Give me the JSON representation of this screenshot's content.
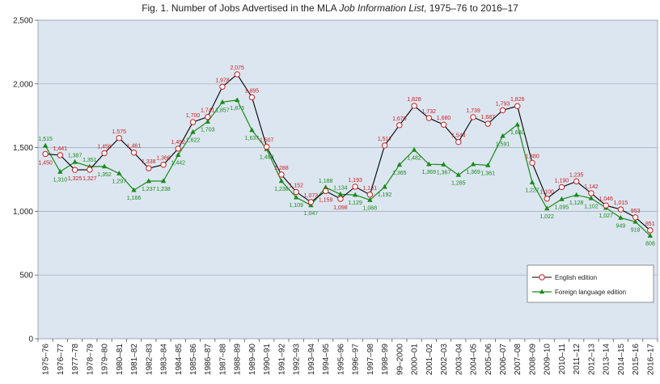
{
  "title": {
    "prefix": "Fig. 1. Number of Jobs Advertised in the MLA ",
    "italic": "Job Information List",
    "suffix": ", 1975–76 to 2016–17"
  },
  "colors": {
    "plot_bg": "#dce6f1",
    "english": "#cc1f1f",
    "english_marker_fill": "#ffffff",
    "english_line": "#000000",
    "foreign": "#1a8a1a"
  },
  "chart_data": {
    "type": "line",
    "title": "Fig. 1. Number of Jobs Advertised in the MLA Job Information List, 1975–76 to 2016–17",
    "xlabel": "",
    "ylabel": "",
    "ylim": [
      0,
      2500
    ],
    "yticks": [
      0,
      500,
      1000,
      1500,
      2000,
      2500
    ],
    "ytick_labels": [
      "0",
      "500",
      "1,000",
      "1,500",
      "2,000",
      "2,500"
    ],
    "grid": "horizontal",
    "legend_position": "bottom-right",
    "categories": [
      "1975–76",
      "1976–77",
      "1977–78",
      "1978–79",
      "1979–80",
      "1980–81",
      "1981–82",
      "1982–83",
      "1983–84",
      "1984–85",
      "1985–86",
      "1986–87",
      "1987–88",
      "1988–89",
      "1989–90",
      "1990–91",
      "1991–92",
      "1992–93",
      "1993–94",
      "1994–95",
      "1995–96",
      "1996–97",
      "1997–98",
      "1998–99",
      "99–2000",
      "2000–01",
      "2001–02",
      "2002–03",
      "2003–04",
      "2004–05",
      "2005–06",
      "2006–07",
      "2007–08",
      "2008–09",
      "2009–10",
      "2010–11",
      "2011–12",
      "2012–13",
      "2013–14",
      "2014–15",
      "2015–16",
      "2016–17"
    ],
    "series": [
      {
        "name": "English edition",
        "values": [
          1450,
          1441,
          1325,
          1327,
          1456,
          1575,
          1461,
          1338,
          1366,
          1492,
          1700,
          1741,
          1978,
          2075,
          1895,
          1507,
          1288,
          1152,
          1073,
          1159,
          1098,
          1193,
          1131,
          1517,
          1676,
          1828,
          1732,
          1680,
          1544,
          1739,
          1687,
          1793,
          1826,
          1380,
          1100,
          1190,
          1235,
          1142,
          1046,
          1015,
          953,
          851
        ],
        "labels": [
          "1,450",
          "1,441",
          "1,325",
          "1,327",
          "1,456",
          "1,575",
          "1,461",
          "1,338",
          "1,366",
          "1,492",
          "1,700",
          "1,741",
          "1,978",
          "2,075",
          "1,895",
          "1,507",
          "1,288",
          "1,152",
          "1,073",
          "1,159",
          "1,098",
          "1,193",
          "1,131",
          "1,517",
          "1,676",
          "1,828",
          "1,732",
          "1,680",
          "1,544",
          "1,739",
          "1,687",
          "1,793",
          "1,826",
          "1,380",
          "1,100",
          "1,190",
          "1,235",
          "1,142",
          "1,046",
          "1,015",
          "953",
          "851"
        ]
      },
      {
        "name": "Foreign language edition",
        "values": [
          1515,
          1310,
          1387,
          1351,
          1352,
          1297,
          1166,
          1237,
          1238,
          1442,
          1622,
          1703,
          1857,
          1873,
          1637,
          1488,
          1238,
          1109,
          1047,
          1188,
          1134,
          1129,
          1088,
          1192,
          1365,
          1482,
          1369,
          1367,
          1285,
          1369,
          1361,
          1591,
          1680,
          1227,
          1022,
          1095,
          1128,
          1102,
          1027,
          949,
          918,
          808
        ],
        "labels": [
          "1,515",
          "1,310",
          "1,387",
          "1,351",
          "1,352",
          "1,297",
          "1,166",
          "1,237",
          "1,238",
          "1,442",
          "1,622",
          "1,703",
          "1,857",
          "1,873",
          "1,637",
          "1,488",
          "1,238",
          "1,109",
          "1,047",
          "1,188",
          "1,134",
          "1,129",
          "1,088",
          "1,192",
          "1,365",
          "1,482",
          "1,369",
          "1,367",
          "1,285",
          "1,369",
          "1,361",
          "1,591",
          "1,680",
          "1,227",
          "1,022",
          "1,095",
          "1,128",
          "1,102",
          "1,027",
          "949",
          "918",
          "808"
        ]
      }
    ]
  }
}
